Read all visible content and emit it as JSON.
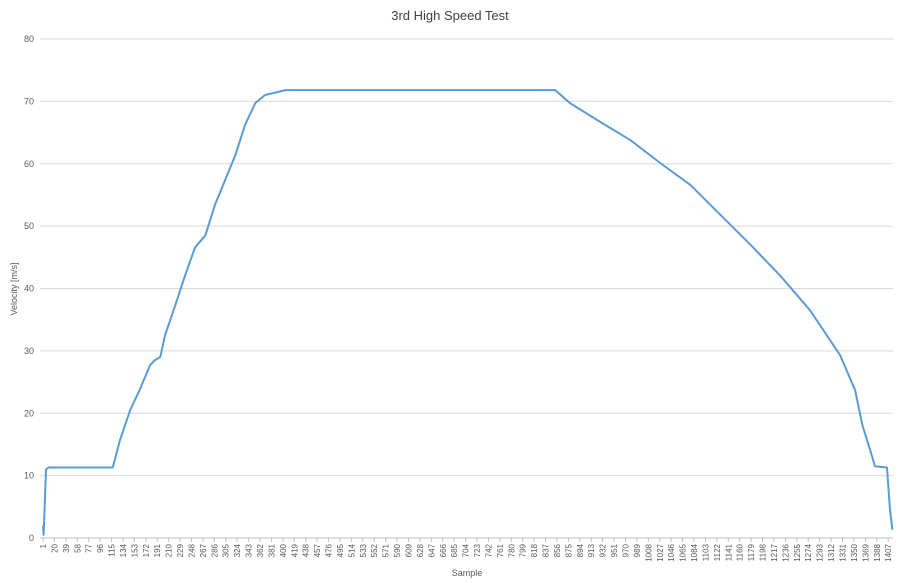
{
  "chart_data": {
    "type": "line",
    "title": "3rd High Speed Test",
    "x_label": "Sample",
    "y_label": "Velocity [m/s]",
    "x": [
      1,
      2,
      6,
      10,
      117,
      129,
      146,
      163,
      179,
      187,
      196,
      204,
      221,
      237,
      254,
      271,
      287,
      304,
      321,
      337,
      354,
      370,
      404,
      853,
      878,
      928,
      978,
      1028,
      1078,
      1128,
      1178,
      1227,
      1277,
      1327,
      1352,
      1364,
      1377,
      1385,
      1405,
      1410,
      1414
    ],
    "series": [
      {
        "name": "Velocity",
        "color": "#5b9bd5",
        "values": [
          2,
          0.5,
          11,
          11.3,
          11.3,
          15.7,
          20.5,
          24,
          27.7,
          28.5,
          29,
          32.5,
          37.3,
          42,
          46.6,
          48.5,
          53.4,
          57.4,
          61.4,
          66.2,
          69.7,
          71,
          71.8,
          71.8,
          69.7,
          66.7,
          63.8,
          60.1,
          56.6,
          51.8,
          47,
          42.1,
          36.5,
          29.3,
          23.7,
          18.1,
          14.1,
          11.5,
          11.3,
          4.5,
          1.3
        ]
      }
    ],
    "xlim": [
      -4,
      1415
    ],
    "xticks": [
      1,
      20,
      39,
      58,
      77,
      96,
      115,
      134,
      153,
      172,
      191,
      210,
      229,
      248,
      267,
      286,
      305,
      324,
      343,
      362,
      381,
      400,
      419,
      438,
      457,
      476,
      495,
      514,
      533,
      552,
      571,
      590,
      609,
      628,
      647,
      666,
      685,
      704,
      723,
      742,
      761,
      780,
      799,
      818,
      837,
      856,
      875,
      894,
      913,
      932,
      951,
      970,
      989,
      1008,
      1027,
      1046,
      1065,
      1084,
      1103,
      1122,
      1141,
      1160,
      1179,
      1198,
      1217,
      1236,
      1255,
      1274,
      1293,
      1312,
      1331,
      1350,
      1369,
      1388,
      1407
    ],
    "ylim": [
      0,
      80
    ],
    "yticks": [
      0,
      10,
      20,
      30,
      40,
      50,
      60,
      70,
      80
    ],
    "grid": true
  }
}
